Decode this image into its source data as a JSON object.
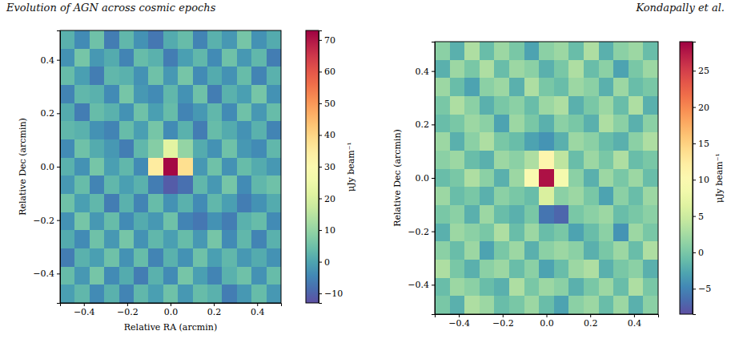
{
  "header": {
    "left": "Evolution of AGN across cosmic epochs",
    "right": "Kondapally et al."
  },
  "chart_data": [
    {
      "type": "heatmap",
      "color": "Spectral_r",
      "xlabel": "Relative RA (arcmin)",
      "ylabel": "Relative Dec (arcmin)",
      "xlim": [
        -0.51,
        0.51
      ],
      "ylim": [
        -0.51,
        0.51
      ],
      "xticks": [
        {
          "value": -0.4,
          "label": "−0.4"
        },
        {
          "value": -0.2,
          "label": "−0.2"
        },
        {
          "value": 0,
          "label": "0.0"
        },
        0.2,
        0.4
      ],
      "yticks": [
        {
          "value": -0.4,
          "label": "−0.4"
        },
        {
          "value": -0.2,
          "label": "−0.2"
        },
        {
          "value": 0,
          "label": "0.0"
        },
        0.2,
        0.4
      ],
      "z": [
        [
          2,
          -4,
          5,
          -6,
          3,
          -3,
          -7,
          1,
          4,
          -5,
          2,
          -2,
          6,
          -3,
          1
        ],
        [
          -3,
          6,
          -2,
          1,
          -5,
          4,
          2,
          -6,
          -1,
          3,
          -4,
          5,
          -2,
          3,
          -6
        ],
        [
          4,
          -1,
          -6,
          3,
          2,
          -3,
          5,
          -2,
          6,
          -4,
          1,
          -3,
          4,
          -5,
          2
        ],
        [
          -5,
          3,
          2,
          -4,
          6,
          -2,
          -4,
          3,
          -3,
          5,
          -6,
          2,
          -1,
          6,
          -3
        ],
        [
          1,
          -6,
          4,
          2,
          -3,
          5,
          -1,
          4,
          -5,
          -2,
          3,
          -4,
          5,
          -2,
          4
        ],
        [
          3,
          2,
          -3,
          -5,
          4,
          -1,
          6,
          -4,
          2,
          -6,
          4,
          1,
          -3,
          2,
          -5
        ],
        [
          -4,
          5,
          1,
          -2,
          -6,
          3,
          8,
          22,
          10,
          1,
          -3,
          5,
          -2,
          -4,
          3
        ],
        [
          2,
          -3,
          6,
          -1,
          3,
          -4,
          35,
          72,
          38,
          -2,
          5,
          -3,
          4,
          1,
          -2
        ],
        [
          -2,
          4,
          -5,
          3,
          -1,
          2,
          -6,
          -11,
          -8,
          3,
          -2,
          6,
          -4,
          3,
          5
        ],
        [
          5,
          -1,
          3,
          -6,
          2,
          -5,
          4,
          -3,
          2,
          -4,
          3,
          -1,
          -6,
          -3,
          1
        ],
        [
          -3,
          6,
          -2,
          4,
          -4,
          1,
          -2,
          5,
          -5,
          -7,
          -3,
          -6,
          2,
          4,
          -4
        ],
        [
          1,
          -4,
          5,
          -2,
          6,
          -3,
          3,
          -1,
          4,
          -2,
          6,
          -4,
          3,
          -5,
          2
        ],
        [
          -6,
          2,
          -1,
          5,
          -3,
          4,
          -5,
          2,
          -3,
          5,
          -1,
          3,
          -2,
          1,
          -3
        ],
        [
          4,
          -2,
          6,
          -4,
          1,
          -6,
          2,
          -4,
          6,
          -1,
          -5,
          2,
          5,
          -3,
          4
        ],
        [
          -1,
          3,
          -4,
          2,
          -5,
          3,
          -1,
          5,
          -2,
          4,
          2,
          -6,
          -2,
          4,
          -2
        ]
      ],
      "colorbar": {
        "range": [
          -13,
          73
        ],
        "label": "μJy beam⁻¹",
        "ticks": [
          {
            "value": -10,
            "label": "−10"
          },
          0,
          10,
          20,
          30,
          40,
          50,
          60,
          70
        ]
      }
    },
    {
      "type": "heatmap",
      "color": "Spectral_r",
      "ylabel": "Relative Dec (arcmin)",
      "xlim": [
        -0.51,
        0.51
      ],
      "ylim": [
        -0.51,
        0.51
      ],
      "xticks": [
        {
          "value": -0.4,
          "label": "−0.4"
        },
        {
          "value": -0.2,
          "label": "−0.2"
        },
        {
          "value": 0,
          "label": "0.0"
        },
        0.2,
        0.4
      ],
      "yticks": [
        {
          "value": -0.4,
          "label": "−0.4"
        },
        {
          "value": -0.2,
          "label": "−0.2"
        },
        {
          "value": 0,
          "label": "0.0"
        },
        0.2,
        0.4
      ],
      "z": [
        [
          1,
          -2,
          3,
          -1,
          2,
          0,
          -3,
          1,
          2,
          -1,
          3,
          -2,
          1,
          2,
          -1
        ],
        [
          -2,
          2,
          0,
          3,
          -1,
          2,
          1,
          -2,
          0,
          3,
          -1,
          1,
          -3,
          0,
          2
        ],
        [
          2,
          -1,
          -3,
          1,
          2,
          -2,
          3,
          0,
          -1,
          2,
          1,
          -2,
          2,
          -1,
          0
        ],
        [
          0,
          3,
          1,
          -2,
          0,
          1,
          -1,
          2,
          3,
          -2,
          0,
          2,
          -1,
          3,
          -2
        ],
        [
          -1,
          0,
          2,
          1,
          -3,
          2,
          0,
          -2,
          1,
          0,
          -2,
          3,
          1,
          -2,
          1
        ],
        [
          2,
          -2,
          1,
          3,
          0,
          -1,
          -3,
          -4,
          -2,
          2,
          1,
          -1,
          -2,
          1,
          3
        ],
        [
          1,
          2,
          -1,
          -2,
          2,
          1,
          3,
          11,
          4,
          -1,
          2,
          0,
          3,
          -1,
          0
        ],
        [
          -1,
          0,
          3,
          1,
          -2,
          2,
          10,
          28,
          9,
          1,
          -2,
          2,
          0,
          2,
          -1
        ],
        [
          2,
          -1,
          0,
          -2,
          1,
          0,
          -1,
          6,
          1,
          2,
          0,
          -3,
          1,
          -1,
          2
        ],
        [
          0,
          1,
          -2,
          2,
          -1,
          -2,
          0,
          -6,
          -7,
          0,
          1,
          2,
          -1,
          0,
          1
        ],
        [
          -2,
          2,
          1,
          0,
          3,
          -1,
          2,
          -1,
          0,
          -3,
          -1,
          1,
          -4,
          2,
          0
        ],
        [
          1,
          -1,
          2,
          -3,
          0,
          2,
          -2,
          1,
          2,
          1,
          -2,
          0,
          2,
          -1,
          3
        ],
        [
          3,
          0,
          -2,
          1,
          2,
          -1,
          1,
          -3,
          -1,
          2,
          3,
          -2,
          0,
          1,
          -2
        ],
        [
          -1,
          2,
          1,
          -1,
          -2,
          3,
          0,
          2,
          1,
          -2,
          0,
          2,
          -1,
          3,
          0
        ],
        [
          0,
          -2,
          3,
          2,
          -1,
          0,
          2,
          -1,
          -3,
          1,
          2,
          -1,
          2,
          -2,
          1
        ]
      ],
      "colorbar": {
        "range": [
          -8.5,
          29
        ],
        "label": "μJy beam⁻¹",
        "ticks": [
          {
            "value": -5,
            "label": "−5"
          },
          0,
          5,
          10,
          15,
          20,
          25
        ]
      }
    }
  ]
}
